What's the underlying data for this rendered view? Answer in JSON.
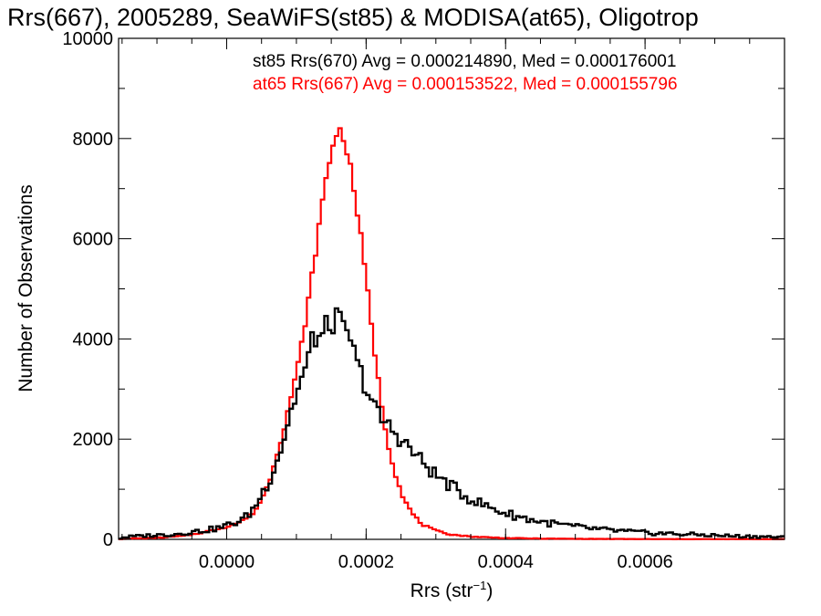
{
  "chart_data": {
    "type": "step",
    "title": "Rrs(667), 2005289, SeaWiFS(st85) & MODISA(at65), Oligotrop",
    "xlabel": "Rrs (str",
    "xlabel_sup": "−1",
    "xlabel_end": ")",
    "ylabel": "Number of Observations",
    "xlim": [
      -0.000155,
      0.0008
    ],
    "ylim": [
      0,
      10000
    ],
    "xticks": [
      0.0,
      0.0002,
      0.0004,
      0.0006
    ],
    "xtick_labels": [
      "0.0000",
      "0.0002",
      "0.0004",
      "0.0006"
    ],
    "yticks": [
      0,
      2000,
      4000,
      6000,
      8000,
      10000
    ],
    "ytick_labels": [
      "0",
      "2000",
      "4000",
      "6000",
      "8000",
      "10000"
    ],
    "grid": false,
    "legend_position": "top-right",
    "bin_width": 5e-06,
    "series": [
      {
        "name": "st85 Rrs(670) Avg = 0.000214890, Med = 0.000176001",
        "color": "#000000",
        "points": [
          [
            -0.000155,
            0
          ],
          [
            -0.00015,
            40
          ],
          [
            -0.00013,
            60
          ],
          [
            -0.00011,
            80
          ],
          [
            -9e-05,
            90
          ],
          [
            -7e-05,
            110
          ],
          [
            -5e-05,
            150
          ],
          [
            -3e-05,
            180
          ],
          [
            -1e-05,
            230
          ],
          [
            0.0,
            280
          ],
          [
            1e-05,
            320
          ],
          [
            2e-05,
            380
          ],
          [
            3e-05,
            470
          ],
          [
            4e-05,
            640
          ],
          [
            5e-05,
            900
          ],
          [
            6e-05,
            1150
          ],
          [
            7e-05,
            1500
          ],
          [
            8e-05,
            1900
          ],
          [
            9e-05,
            2450
          ],
          [
            0.0001,
            2900
          ],
          [
            0.00011,
            3300
          ],
          [
            0.00012,
            3650
          ],
          [
            0.000125,
            4400
          ],
          [
            0.00013,
            3700
          ],
          [
            0.000135,
            4300
          ],
          [
            0.00014,
            3900
          ],
          [
            0.000145,
            4500
          ],
          [
            0.00015,
            4000
          ],
          [
            0.000155,
            4700
          ],
          [
            0.00016,
            4100
          ],
          [
            0.000165,
            4500
          ],
          [
            0.00017,
            3850
          ],
          [
            0.000175,
            4200
          ],
          [
            0.00018,
            3900
          ],
          [
            0.000185,
            3500
          ],
          [
            0.00019,
            3400
          ],
          [
            0.0002,
            3050
          ],
          [
            0.00021,
            2700
          ],
          [
            0.00022,
            2400
          ],
          [
            0.00023,
            2300
          ],
          [
            0.00024,
            2150
          ],
          [
            0.00025,
            2000
          ],
          [
            0.00026,
            1850
          ],
          [
            0.00027,
            1700
          ],
          [
            0.00028,
            1550
          ],
          [
            0.0003,
            1280
          ],
          [
            0.00032,
            1080
          ],
          [
            0.00034,
            880
          ],
          [
            0.00036,
            740
          ],
          [
            0.00038,
            620
          ],
          [
            0.0004,
            520
          ],
          [
            0.00042,
            450
          ],
          [
            0.00044,
            380
          ],
          [
            0.00046,
            330
          ],
          [
            0.00048,
            290
          ],
          [
            0.0005,
            250
          ],
          [
            0.00052,
            220
          ],
          [
            0.00054,
            190
          ],
          [
            0.00056,
            170
          ],
          [
            0.00058,
            150
          ],
          [
            0.0006,
            130
          ],
          [
            0.00062,
            120
          ],
          [
            0.00064,
            110
          ],
          [
            0.00066,
            100
          ],
          [
            0.00068,
            90
          ],
          [
            0.0007,
            80
          ],
          [
            0.00072,
            70
          ],
          [
            0.00074,
            60
          ],
          [
            0.00076,
            55
          ],
          [
            0.00078,
            50
          ],
          [
            0.0008,
            40
          ]
        ]
      },
      {
        "name": "at65 Rrs(667) Avg = 0.000153522, Med = 0.000155796",
        "color": "#ff0000",
        "points": [
          [
            -0.000155,
            0
          ],
          [
            -0.00015,
            10
          ],
          [
            -0.0001,
            30
          ],
          [
            -6e-05,
            70
          ],
          [
            -3e-05,
            150
          ],
          [
            0.0,
            250
          ],
          [
            2e-05,
            350
          ],
          [
            4e-05,
            550
          ],
          [
            5e-05,
            800
          ],
          [
            6e-05,
            1100
          ],
          [
            7e-05,
            1600
          ],
          [
            8e-05,
            2100
          ],
          [
            9e-05,
            2700
          ],
          [
            0.0001,
            3300
          ],
          [
            0.00011,
            4100
          ],
          [
            0.00012,
            5000
          ],
          [
            0.00013,
            6000
          ],
          [
            0.00014,
            7000
          ],
          [
            0.00015,
            7700
          ],
          [
            0.000155,
            8100
          ],
          [
            0.00016,
            8100
          ],
          [
            0.000165,
            8200
          ],
          [
            0.00017,
            7900
          ],
          [
            0.000175,
            7600
          ],
          [
            0.00018,
            7200
          ],
          [
            0.00019,
            6300
          ],
          [
            0.0002,
            5200
          ],
          [
            0.00021,
            4000
          ],
          [
            0.00022,
            2900
          ],
          [
            0.00023,
            2000
          ],
          [
            0.00024,
            1400
          ],
          [
            0.00025,
            950
          ],
          [
            0.00026,
            650
          ],
          [
            0.00027,
            450
          ],
          [
            0.00028,
            300
          ],
          [
            0.0003,
            170
          ],
          [
            0.00032,
            100
          ],
          [
            0.00035,
            55
          ],
          [
            0.0004,
            25
          ],
          [
            0.00045,
            15
          ],
          [
            0.0005,
            10
          ],
          [
            0.0006,
            5
          ],
          [
            0.0008,
            3
          ]
        ]
      }
    ]
  }
}
